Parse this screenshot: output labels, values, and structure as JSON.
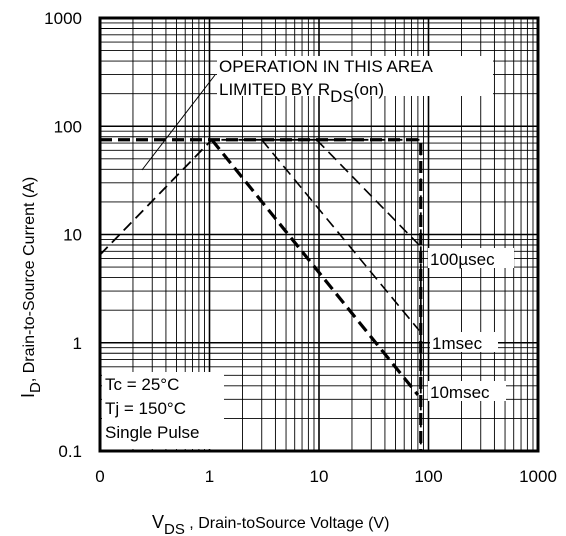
{
  "chart_data": {
    "type": "line",
    "x_scale": "log",
    "y_scale": "log",
    "xlim": [
      0.1,
      1000
    ],
    "ylim": [
      0.1,
      1000
    ],
    "grid": true,
    "x_ticks": [
      "0",
      "1",
      "10",
      "100",
      "1000"
    ],
    "y_ticks": [
      "1000",
      "100",
      "10",
      "1",
      "0.1"
    ],
    "xlabel": {
      "main": "V",
      "sub": "DS",
      "rest": " , Drain-toSource Voltage (V)"
    },
    "ylabel": {
      "main": "I",
      "sub": "D",
      "rest": ",  Drain-to-Source Current (A)"
    },
    "annotations": {
      "rds_line1": "OPERATION IN THIS AREA",
      "rds_line2_main": "LIMITED BY R",
      "rds_line2_sub": "DS",
      "rds_line2_rest": "(on)",
      "us100": "100µsec",
      "ms1": "1msec",
      "ms10": "10msec",
      "cond_tc": "Tc = 25°C",
      "cond_tj": "Tj = 150°C",
      "cond_pulse": "Single Pulse"
    },
    "series": [
      {
        "name": "100µsec",
        "points": [
          [
            0.1,
            6.5
          ],
          [
            1.05,
            75
          ],
          [
            80,
            75
          ],
          [
            85,
            75
          ],
          [
            85,
            0.1
          ]
        ]
      },
      {
        "name": "100µsec",
        "points": [
          [
            9.5,
            75
          ],
          [
            82,
            8
          ]
        ]
      },
      {
        "name": "1msec",
        "points": [
          [
            3,
            75
          ],
          [
            82,
            1.3
          ]
        ]
      },
      {
        "name": "10msec",
        "points": [
          [
            1.05,
            75
          ],
          [
            80,
            0.33
          ]
        ]
      }
    ]
  }
}
